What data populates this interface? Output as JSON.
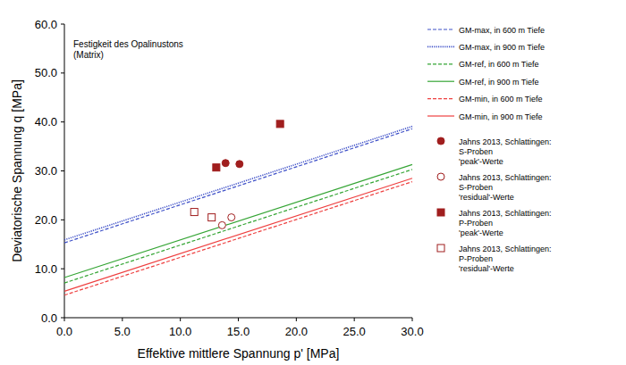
{
  "chart_data": {
    "type": "line",
    "title": "Festigkeit des Opalinustons\n(Matrix)",
    "x_label": "Effektive mittlere Spannung p' [MPa]",
    "y_label": "Deviatorische Spannung q [MPa]",
    "xlim": [
      0,
      30
    ],
    "ylim": [
      0,
      60
    ],
    "xticks": [
      {
        "value": 0,
        "label": "0.0"
      },
      {
        "value": 5,
        "label": "5.0"
      },
      {
        "value": 10,
        "label": "10.0"
      },
      {
        "value": 15,
        "label": "15.0"
      },
      {
        "value": 20,
        "label": "20.0"
      },
      {
        "value": 25,
        "label": "25.0"
      },
      {
        "value": 30,
        "label": "30.0"
      }
    ],
    "yticks": [
      {
        "value": 0,
        "label": "0.0"
      },
      {
        "value": 10,
        "label": "10.0"
      },
      {
        "value": 20,
        "label": "20.0"
      },
      {
        "value": 30,
        "label": "30.0"
      },
      {
        "value": 40,
        "label": "40.0"
      },
      {
        "value": 50,
        "label": "50.0"
      },
      {
        "value": 60,
        "label": "60.0"
      }
    ],
    "grid": false,
    "legend": "right",
    "series": [
      {
        "name": "GM-max, in 600 m Tiefe",
        "type": "line",
        "line_style": "dashed",
        "color": "#3f51c8",
        "x": [
          0,
          30
        ],
        "values": [
          15.3,
          38.6
        ]
      },
      {
        "name": "GM-max, in 900 m Tiefe",
        "type": "line",
        "line_style": "dotted",
        "color": "#3f51c8",
        "x": [
          0,
          30
        ],
        "values": [
          15.9,
          39.1
        ]
      },
      {
        "name": "GM-ref, in 600 m Tiefe",
        "type": "line",
        "line_style": "dashed",
        "color": "#35a535",
        "x": [
          0,
          30
        ],
        "values": [
          7.1,
          30.3
        ]
      },
      {
        "name": "GM-ref, in 900 m Tiefe",
        "type": "line",
        "line_style": "solid",
        "color": "#35a535",
        "x": [
          0,
          30
        ],
        "values": [
          8.2,
          31.3
        ]
      },
      {
        "name": "GM-min, in 600 m Tiefe",
        "type": "line",
        "line_style": "dashed",
        "color": "#ee4040",
        "x": [
          0,
          30
        ],
        "values": [
          4.6,
          27.8
        ]
      },
      {
        "name": "GM-min, in 900 m Tiefe",
        "type": "line",
        "line_style": "solid",
        "color": "#ee4040",
        "x": [
          0,
          30
        ],
        "values": [
          5.4,
          28.5
        ]
      },
      {
        "name": "Jahns 2013, Schlattingen:\nS-Proben\n'peak'-Werte",
        "type": "scatter",
        "marker": "circle",
        "color": "#a01e1e",
        "x": [
          13.9,
          15.1
        ],
        "values": [
          31.6,
          31.4
        ]
      },
      {
        "name": "Jahns 2013, Schlattingen:\nS-Proben\n'residual'-Werte",
        "type": "scatter",
        "marker": "open-circle",
        "color": "#a01e1e",
        "x": [
          13.6,
          14.4
        ],
        "values": [
          18.9,
          20.5
        ]
      },
      {
        "name": "Jahns 2013, Schlattingen:\nP-Proben\n'peak'-Werte",
        "type": "scatter",
        "marker": "square",
        "color": "#a01e1e",
        "x": [
          13.1,
          18.6
        ],
        "values": [
          30.7,
          39.6
        ]
      },
      {
        "name": "Jahns 2013, Schlattingen:\nP-Proben\n'residual'-Werte",
        "type": "scatter",
        "marker": "open-square",
        "color": "#a01e1e",
        "x": [
          11.2,
          12.7
        ],
        "values": [
          21.6,
          20.5
        ]
      }
    ]
  }
}
